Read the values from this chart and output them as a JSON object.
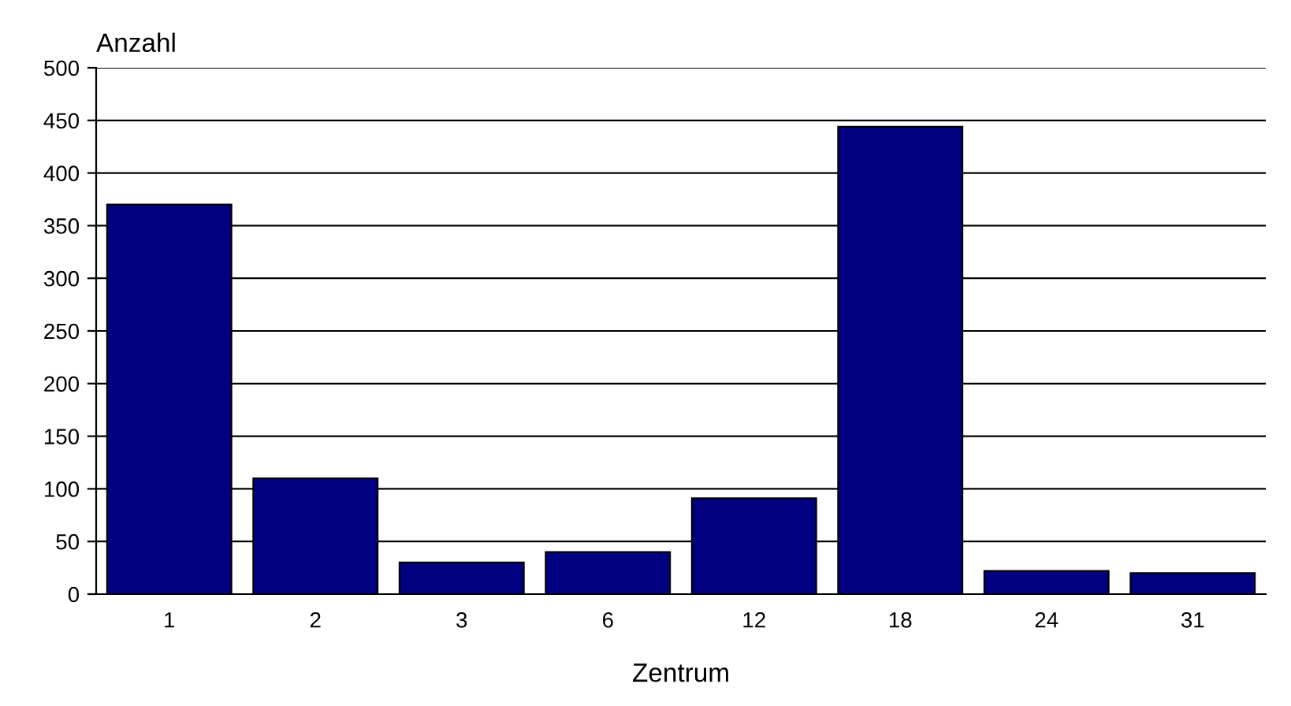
{
  "chart_data": {
    "type": "bar",
    "xlabel": "Zentrum",
    "ylabel": "Anzahl",
    "categories": [
      "1",
      "2",
      "3",
      "6",
      "12",
      "18",
      "24",
      "31"
    ],
    "values": [
      370,
      110,
      30,
      40,
      91,
      444,
      22,
      20
    ],
    "color": "#000080",
    "ylim": [
      0,
      500
    ],
    "yticks": [
      0,
      50,
      100,
      150,
      200,
      250,
      300,
      350,
      400,
      450,
      500
    ],
    "grid": "y",
    "legend": false
  }
}
